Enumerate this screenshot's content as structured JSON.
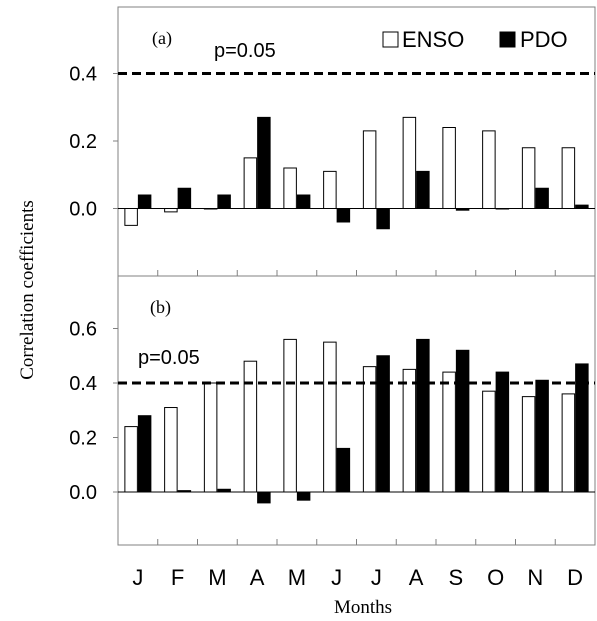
{
  "chart_data": [
    {
      "type": "bar",
      "panel_label": "(a)",
      "categories": [
        "J",
        "F",
        "M",
        "A",
        "M",
        "J",
        "J",
        "A",
        "S",
        "O",
        "N",
        "D"
      ],
      "series": [
        {
          "name": "ENSO",
          "style": "open",
          "values": [
            -0.05,
            -0.01,
            0.0,
            0.15,
            0.12,
            0.11,
            0.23,
            0.27,
            0.24,
            0.23,
            0.18,
            0.18
          ]
        },
        {
          "name": "PDO",
          "style": "filled",
          "values": [
            0.04,
            0.06,
            0.04,
            0.27,
            0.04,
            -0.04,
            -0.06,
            0.11,
            -0.005,
            0.0,
            0.06,
            0.01
          ]
        }
      ],
      "threshold": {
        "value": 0.4,
        "label": "p=0.05"
      },
      "yticks": [
        "0.0",
        "0.2",
        "0.4"
      ],
      "ylim": [
        -0.15,
        0.6
      ],
      "legend_position": "top-right"
    },
    {
      "type": "bar",
      "panel_label": "(b)",
      "categories": [
        "J",
        "F",
        "M",
        "A",
        "M",
        "J",
        "J",
        "A",
        "S",
        "O",
        "N",
        "D"
      ],
      "series": [
        {
          "name": "ENSO",
          "style": "open",
          "values": [
            0.24,
            0.31,
            0.4,
            0.48,
            0.56,
            0.55,
            0.46,
            0.45,
            0.44,
            0.37,
            0.35,
            0.36
          ]
        },
        {
          "name": "PDO",
          "style": "filled",
          "values": [
            0.28,
            0.005,
            0.01,
            -0.04,
            -0.03,
            0.16,
            0.5,
            0.56,
            0.52,
            0.44,
            0.41,
            0.47
          ]
        }
      ],
      "threshold": {
        "value": 0.4,
        "label": "p=0.05"
      },
      "yticks": [
        "0.0",
        "0.2",
        "0.4",
        "0.6"
      ],
      "ylim": [
        -0.2,
        0.72
      ]
    }
  ],
  "ylabel": "Correlation coefficients",
  "xlabel": "Months",
  "colors": {
    "frame": "#808080",
    "open_bar_fill": "#ffffff",
    "filled_bar": "#000000",
    "text": "#000000"
  }
}
